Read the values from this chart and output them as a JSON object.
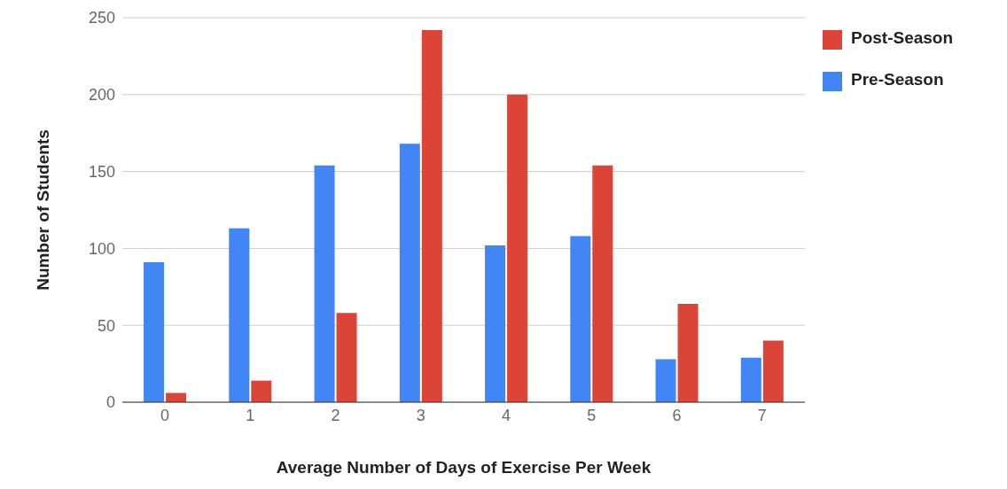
{
  "chart_data": {
    "type": "bar",
    "xlabel": "Average Number of Days of Exercise Per Week",
    "ylabel": "Number of Students",
    "categories": [
      "0",
      "1",
      "2",
      "3",
      "4",
      "5",
      "6",
      "7"
    ],
    "series": [
      {
        "name": "Pre-Season",
        "color": "#4285f4",
        "values": [
          91,
          113,
          154,
          168,
          102,
          108,
          28,
          29
        ]
      },
      {
        "name": "Post-Season",
        "color": "#db4437",
        "values": [
          6,
          14,
          58,
          242,
          200,
          154,
          64,
          40
        ]
      }
    ],
    "ylim": [
      0,
      250
    ],
    "yticks": [
      0,
      50,
      100,
      150,
      200,
      250
    ],
    "grid": "y",
    "legend": "top right"
  }
}
